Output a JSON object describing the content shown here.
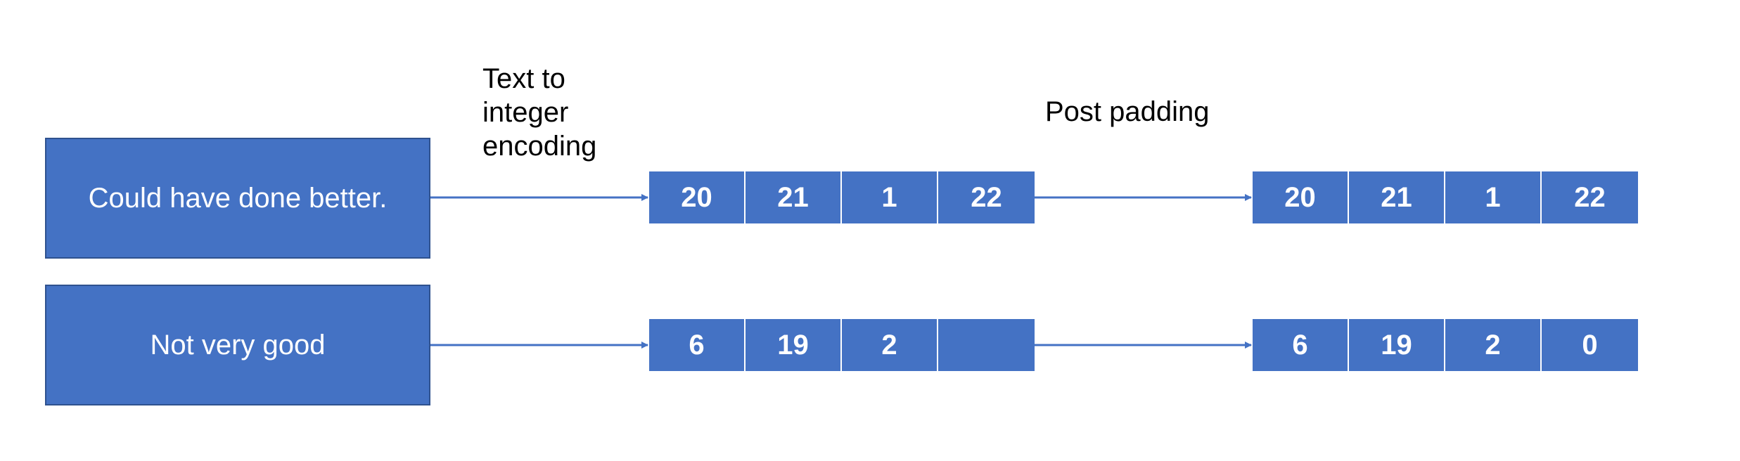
{
  "colors": {
    "box_fill": "#4472c4",
    "box_border": "#2f528f",
    "arrow": "#4472c4",
    "text_on_box": "#ffffff",
    "label_text": "#000000"
  },
  "labels": {
    "encoding": "Text to\ninteger\nencoding",
    "padding": "Post padding"
  },
  "rows": [
    {
      "sentence": "Could have done better.",
      "encoded": [
        "20",
        "21",
        "1",
        "22"
      ],
      "padded": [
        "20",
        "21",
        "1",
        "22"
      ]
    },
    {
      "sentence": "Not very good",
      "encoded": [
        "6",
        "19",
        "2",
        ""
      ],
      "padded": [
        "6",
        "19",
        "2",
        "0"
      ]
    }
  ]
}
